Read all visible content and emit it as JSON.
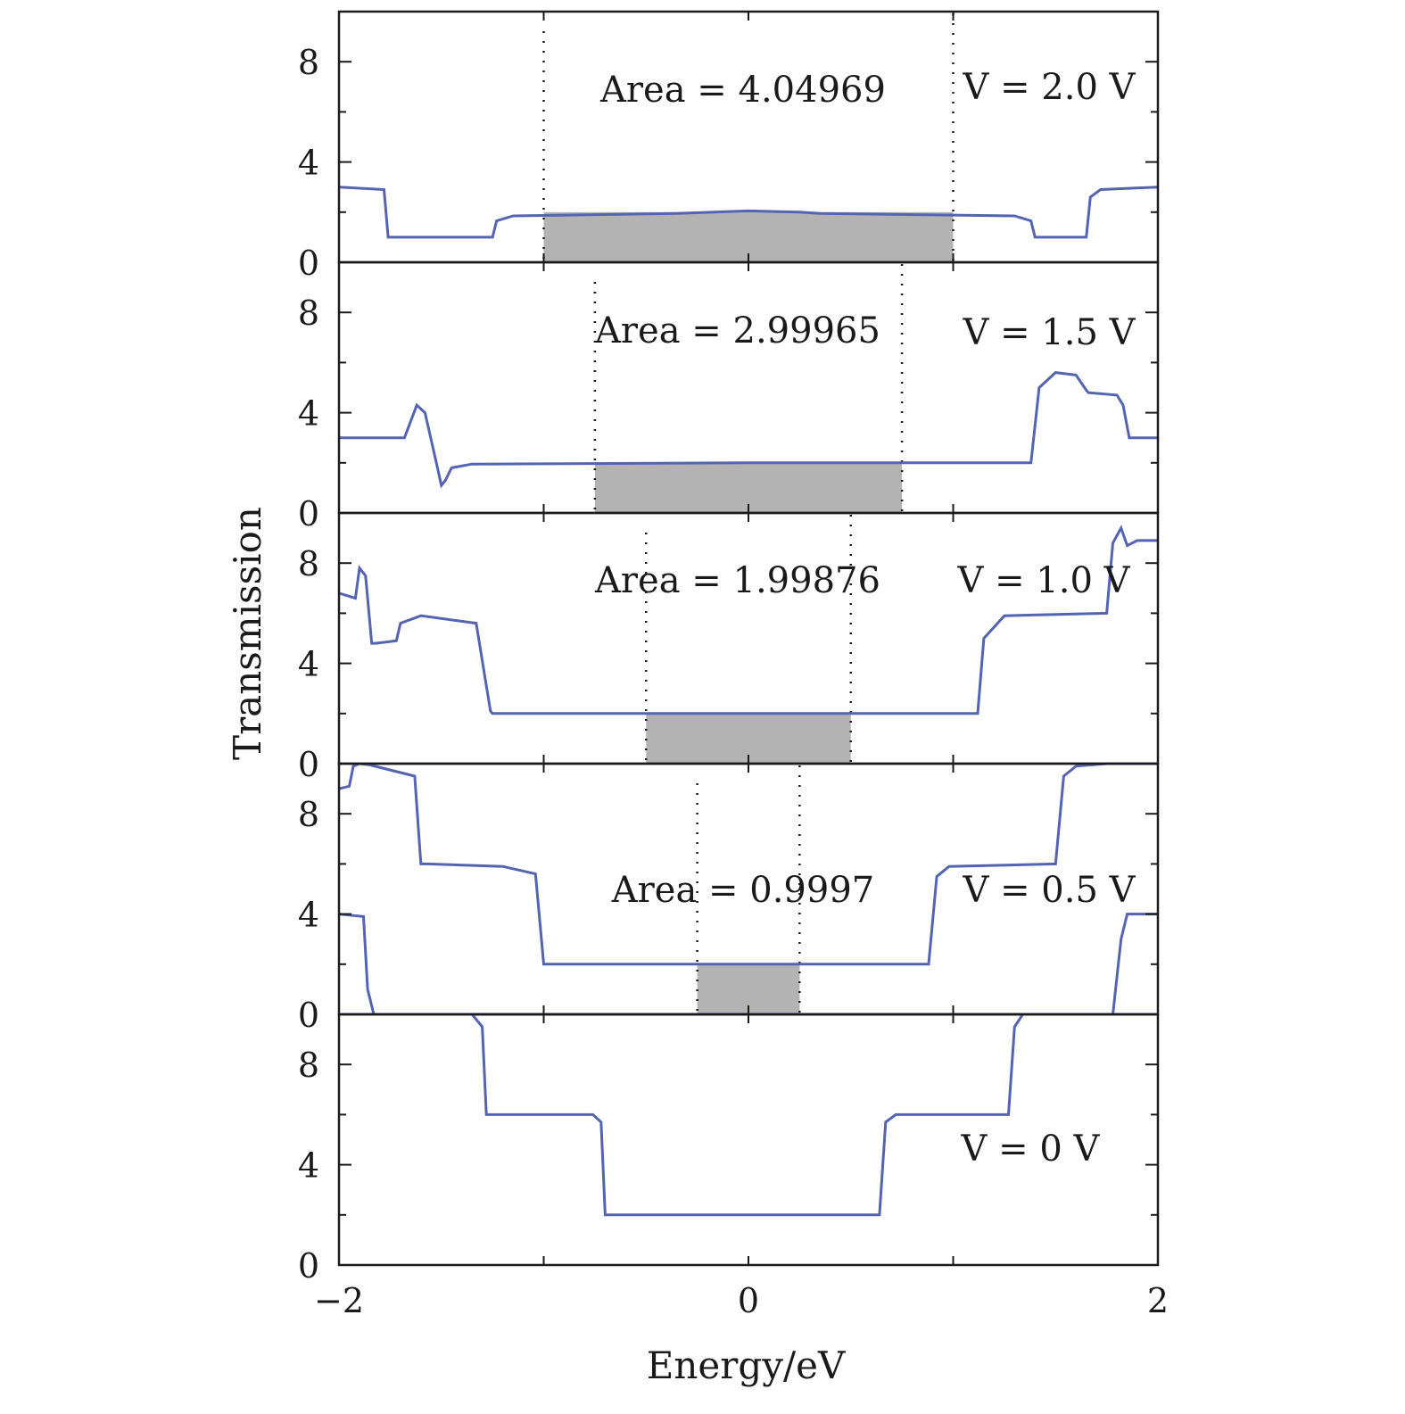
{
  "chart_data": {
    "type": "line",
    "layout": "stacked-panels",
    "xlabel": "Energy/eV",
    "ylabel": "Transmission",
    "xlim": [
      -2,
      2
    ],
    "ylim": [
      0,
      10
    ],
    "xticks": [
      -2,
      -1,
      0,
      1,
      2
    ],
    "xtick_labels": [
      "−2",
      "",
      "0",
      "",
      "2"
    ],
    "yticks": [
      0,
      2,
      4,
      6,
      8,
      10
    ],
    "ytick_labels": [
      "0",
      "",
      "4",
      "",
      "8",
      ""
    ],
    "line_color": "#5563b3",
    "shade_color": "#b3b3b3",
    "panels": [
      {
        "bias_label": "V = 2.0 V",
        "area_label": "Area = 4.04969",
        "window": [
          -1.0,
          1.0
        ],
        "series": [
          {
            "x": [
              -2,
              -1.78,
              -1.76,
              -1.74,
              -1.25,
              -1.23,
              -1.15,
              -0.35,
              0,
              0.25,
              0.35,
              1.3,
              1.38,
              1.4,
              1.65,
              1.67,
              1.72,
              2
            ],
            "y": [
              3.0,
              2.9,
              1.0,
              1.0,
              1.0,
              1.65,
              1.85,
              1.95,
              2.05,
              2.0,
              1.95,
              1.85,
              1.65,
              1.0,
              1.0,
              2.6,
              2.9,
              3.0
            ]
          }
        ]
      },
      {
        "bias_label": "V = 1.5 V",
        "area_label": "Area = 2.99965",
        "window": [
          -0.75,
          0.75
        ],
        "series": [
          {
            "x": [
              -2,
              -1.68,
              -1.62,
              -1.58,
              -1.53,
              -1.5,
              -1.48,
              -1.45,
              -1.35,
              0,
              1.38,
              1.42,
              1.5,
              1.6,
              1.65,
              1.66,
              1.8,
              1.83,
              1.86,
              2
            ],
            "y": [
              3.0,
              3.0,
              4.3,
              4.0,
              2.2,
              1.1,
              1.3,
              1.8,
              1.95,
              2.0,
              2.0,
              5.0,
              5.6,
              5.5,
              4.9,
              4.8,
              4.7,
              4.3,
              3.0,
              3.0
            ]
          }
        ]
      },
      {
        "bias_label": "V = 1.0 V",
        "area_label": "Area = 1.99876",
        "window": [
          -0.5,
          0.5
        ],
        "series": [
          {
            "x": [
              -2,
              -1.92,
              -1.9,
              -1.87,
              -1.84,
              -1.82,
              -1.72,
              -1.7,
              -1.6,
              -1.33,
              -1.26,
              -1.25,
              1.12,
              1.15,
              1.25,
              1.75,
              1.78,
              1.82,
              1.85,
              1.9,
              2
            ],
            "y": [
              6.8,
              6.6,
              7.8,
              7.5,
              4.8,
              4.8,
              4.9,
              5.6,
              5.9,
              5.6,
              2.1,
              2.0,
              2.0,
              5.0,
              5.9,
              6.0,
              8.8,
              9.4,
              8.7,
              8.9,
              8.9
            ]
          }
        ]
      },
      {
        "bias_label": "V = 0.5 V",
        "area_label": "Area = 0.9997",
        "window": [
          -0.25,
          0.25
        ],
        "series": [
          {
            "x": [
              -2,
              -1.95,
              -1.93,
              -1.9,
              -1.85,
              -1.63,
              -1.6,
              -1.57,
              -1.2,
              -1.04,
              -1.0,
              0.88,
              0.92,
              0.98,
              1.5,
              1.54,
              1.6,
              1.75,
              2
            ],
            "y": [
              9.0,
              9.1,
              9.9,
              10.0,
              9.95,
              9.5,
              6.0,
              6.0,
              5.9,
              5.6,
              2.0,
              2.0,
              5.5,
              5.9,
              6.0,
              9.5,
              9.9,
              10.0,
              10.0
            ]
          },
          {
            "x": [
              -2,
              -1.88,
              -1.86,
              -1.83,
              -1.6,
              -1.4,
              -1.37,
              1.78,
              1.82,
              1.85,
              2
            ],
            "y": [
              4.0,
              3.9,
              1.0,
              0.0,
              0.0,
              0.0,
              0.0,
              0.0,
              3.0,
              4.0,
              4.0
            ]
          }
        ]
      },
      {
        "bias_label": "V = 0 V",
        "area_label": "",
        "window": null,
        "series": [
          {
            "x": [
              -2,
              -1.35,
              -1.3,
              -1.28,
              -0.76,
              -0.72,
              -0.7,
              0.64,
              0.67,
              0.72,
              1.27,
              1.3,
              1.34,
              2
            ],
            "y": [
              10.0,
              10.0,
              9.5,
              6.0,
              6.0,
              5.7,
              2.0,
              2.0,
              5.7,
              6.0,
              6.0,
              9.5,
              10.0,
              10.0
            ]
          }
        ]
      }
    ]
  }
}
